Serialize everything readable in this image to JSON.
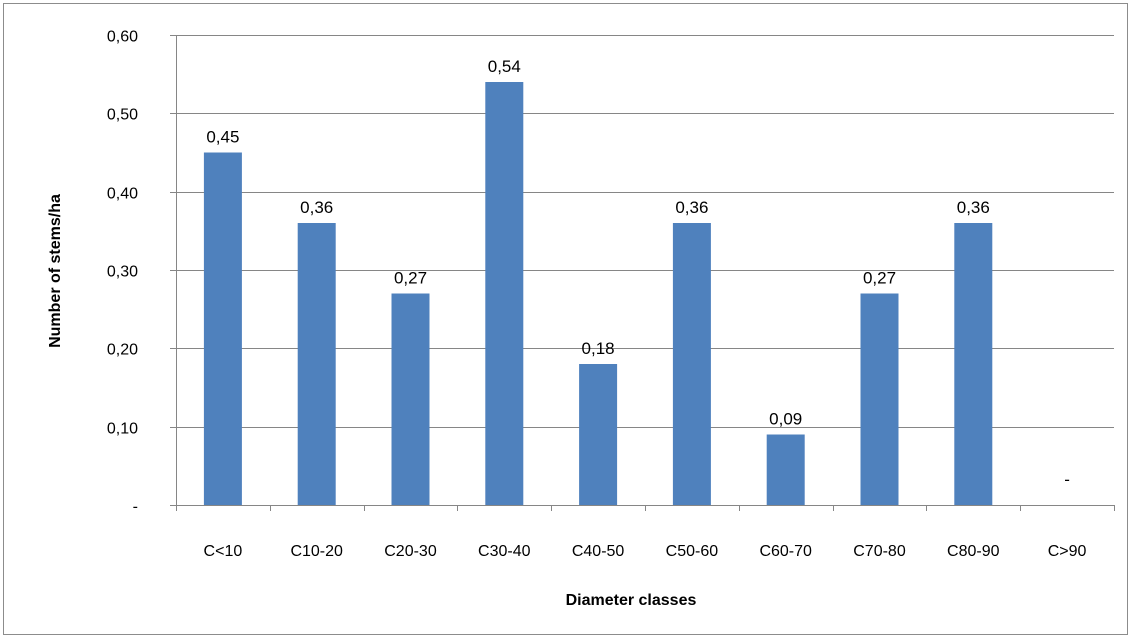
{
  "chart_data": {
    "type": "bar",
    "categories": [
      "C<10",
      "C10-20",
      "C20-30",
      "C30-40",
      "C40-50",
      "C50-60",
      "C60-70",
      "C70-80",
      "C80-90",
      "C>90"
    ],
    "values": [
      0.45,
      0.36,
      0.27,
      0.54,
      0.18,
      0.36,
      0.09,
      0.27,
      0.36,
      0
    ],
    "data_labels": [
      "0,45",
      "0,36",
      "0,27",
      "0,54",
      "0,18",
      "0,36",
      "0,09",
      "0,27",
      "0,36",
      "-"
    ],
    "title": "",
    "xlabel": "Diameter classes",
    "ylabel": "Number of stems/ha",
    "ylim": [
      0,
      0.6
    ],
    "yticks": [
      0,
      0.1,
      0.2,
      0.3,
      0.4,
      0.5,
      0.6
    ],
    "ytick_labels": [
      "-",
      "0,10",
      "0,20",
      "0,30",
      "0,40",
      "0,50",
      "0,60"
    ],
    "grid": true,
    "legend": "none",
    "bar_color": "#4f81bd",
    "grid_color": "#868686"
  }
}
